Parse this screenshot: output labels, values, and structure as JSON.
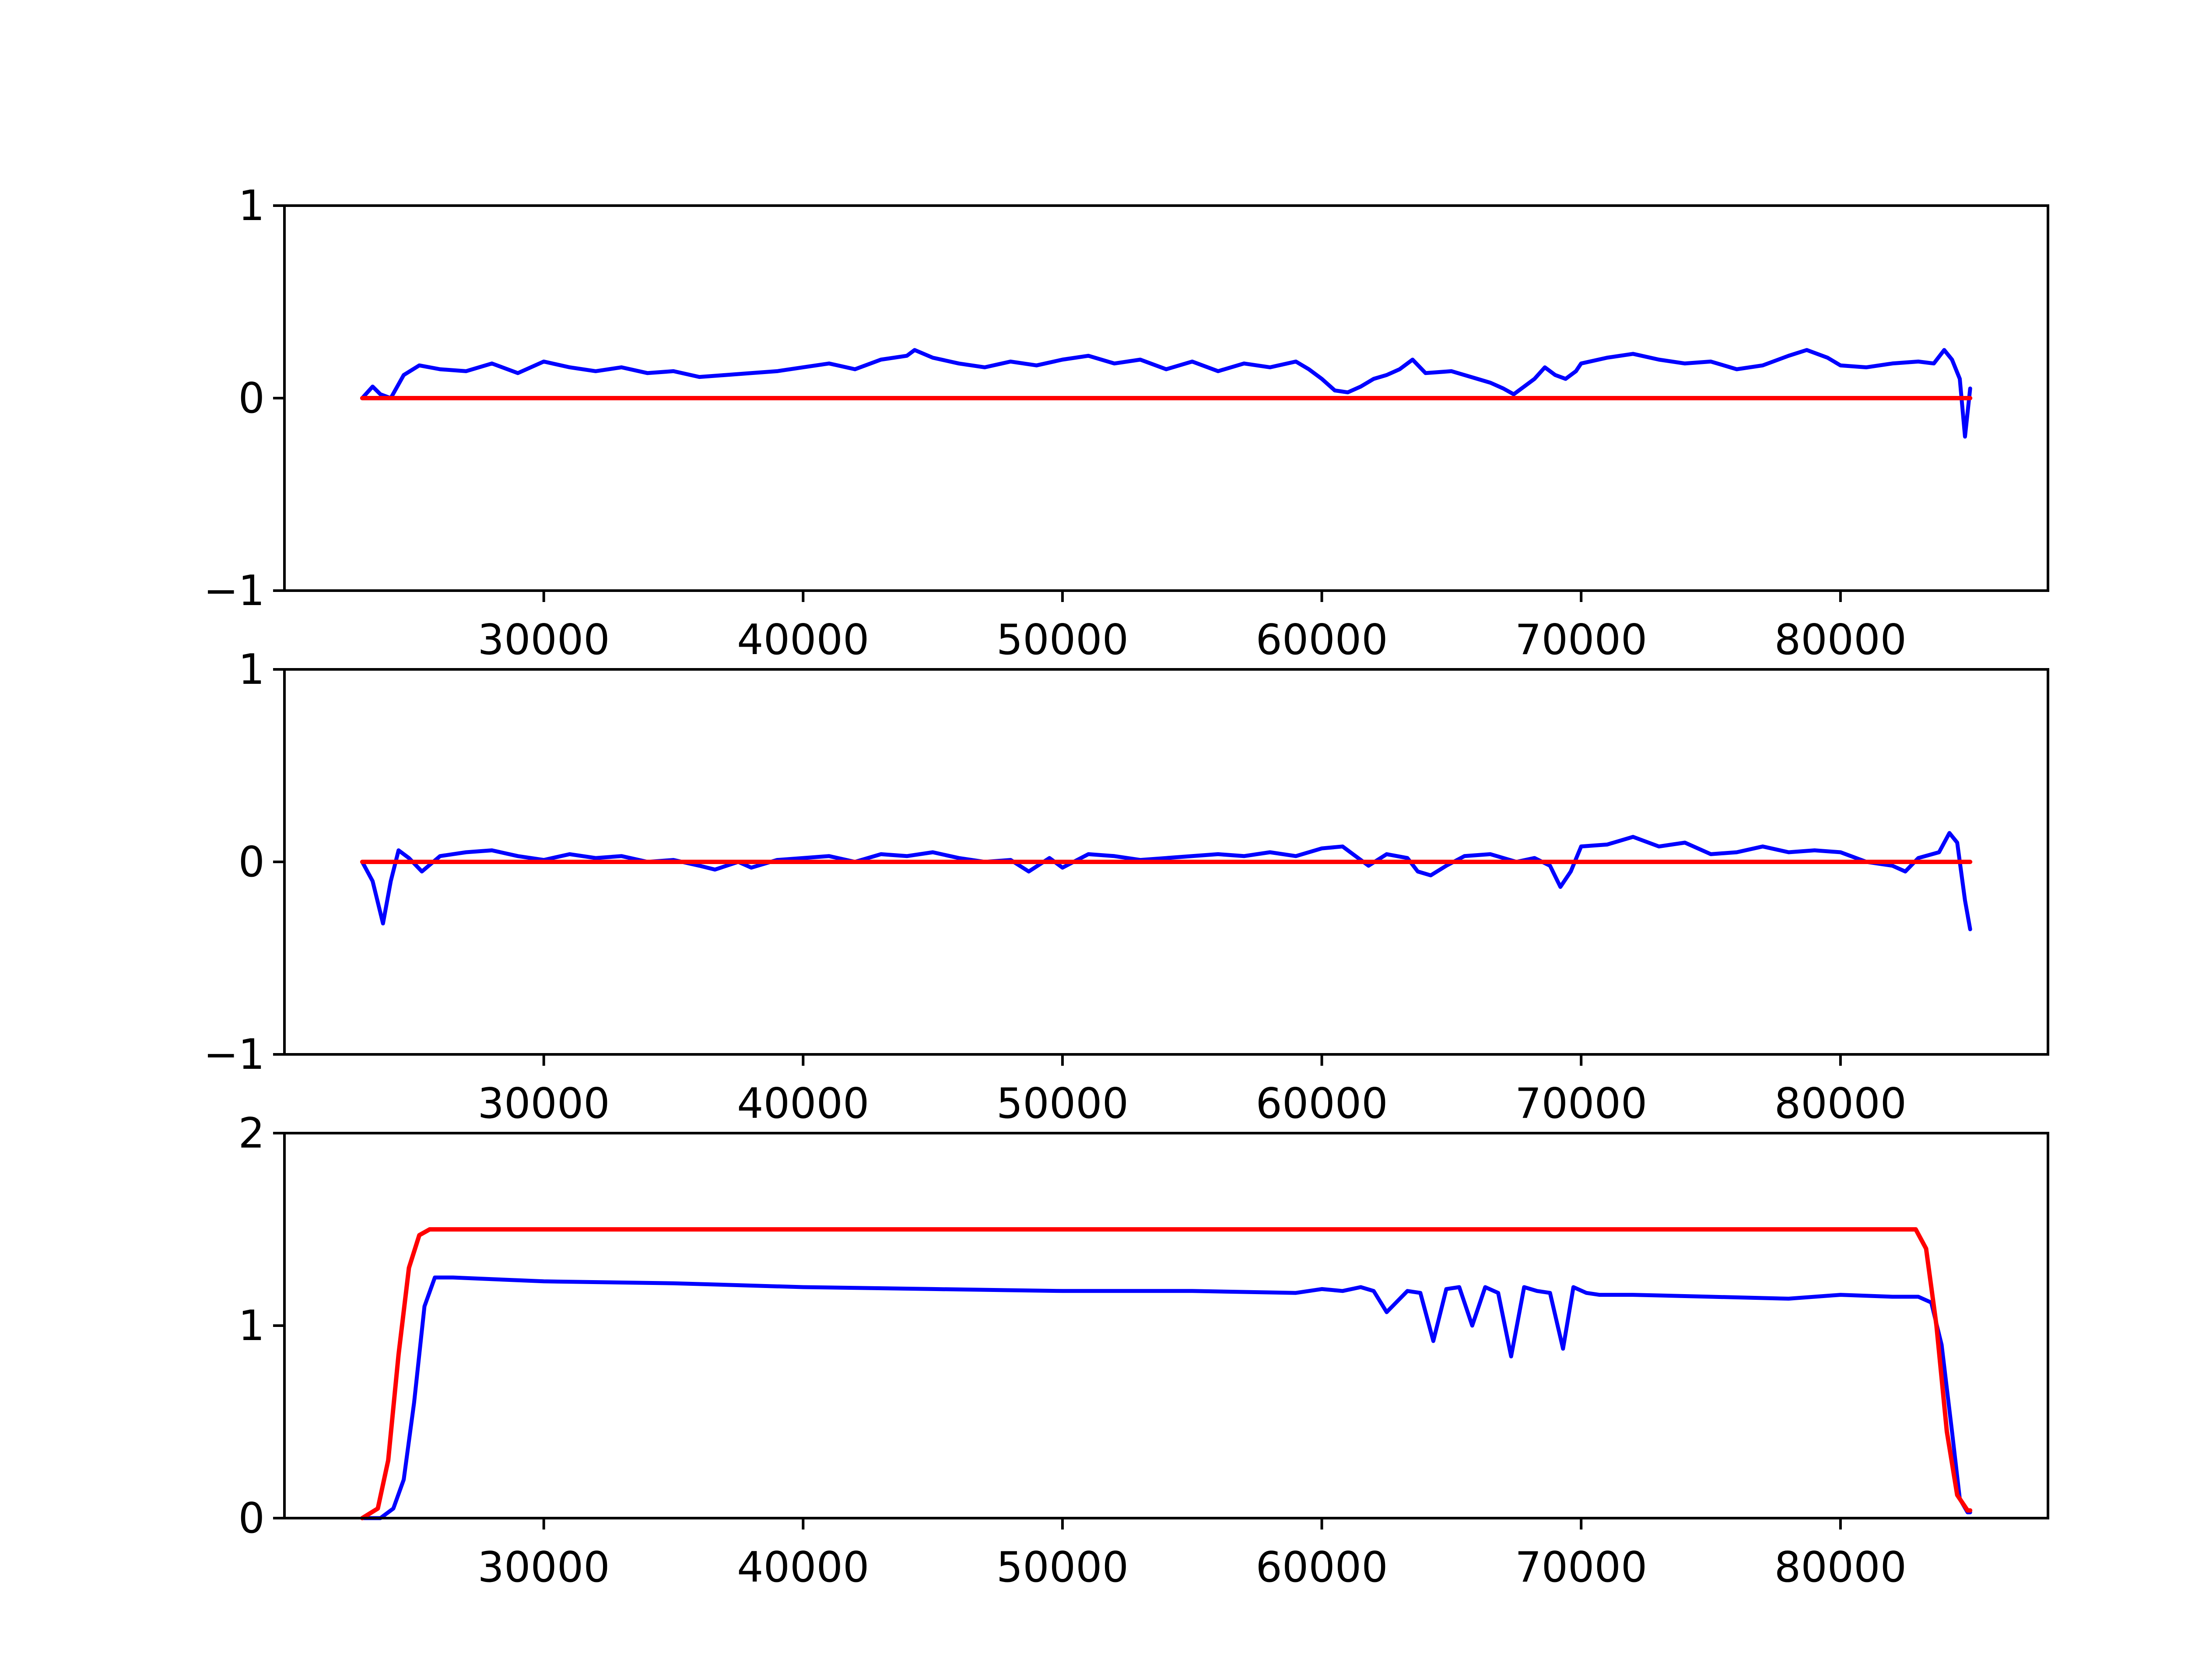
{
  "colors": {
    "measured": "#0000ff",
    "reference": "#ff0000",
    "axes": "#000000",
    "background": "#ffffff"
  },
  "chart_data": [
    {
      "type": "line",
      "title": "",
      "xlabel": "",
      "ylabel": "",
      "xlim": [
        20000,
        88000
      ],
      "ylim": [
        -1,
        1
      ],
      "xticks": [
        30000,
        40000,
        50000,
        60000,
        70000,
        80000
      ],
      "xtick_labels": [
        "30000",
        "40000",
        "50000",
        "60000",
        "70000",
        "80000"
      ],
      "yticks": [
        -1,
        0,
        1
      ],
      "ytick_labels": [
        "−1",
        "0",
        "1"
      ],
      "grid": false,
      "legend": "none",
      "series": [
        {
          "color": "#0000ff",
          "x": [
            23000,
            23400,
            23700,
            24100,
            24600,
            25200,
            26000,
            27000,
            28000,
            29000,
            30000,
            31000,
            32000,
            33000,
            34000,
            35000,
            36000,
            37000,
            38000,
            39000,
            40000,
            41000,
            42000,
            43000,
            44000,
            44300,
            45000,
            46000,
            47000,
            48000,
            49000,
            50000,
            51000,
            52000,
            53000,
            54000,
            55000,
            56000,
            57000,
            58000,
            59000,
            59500,
            60000,
            60500,
            61000,
            61500,
            62000,
            62500,
            63000,
            63500,
            64000,
            65000,
            66000,
            66500,
            67000,
            67400,
            67800,
            68200,
            68600,
            69000,
            69400,
            69800,
            70000,
            71000,
            72000,
            73000,
            74000,
            75000,
            76000,
            77000,
            78000,
            78700,
            79500,
            80000,
            81000,
            82000,
            83000,
            83600,
            84000,
            84300,
            84600,
            84800,
            85000
          ],
          "y": [
            0.0,
            0.06,
            0.02,
            0.0,
            0.12,
            0.17,
            0.15,
            0.14,
            0.18,
            0.13,
            0.19,
            0.16,
            0.14,
            0.16,
            0.13,
            0.14,
            0.11,
            0.12,
            0.13,
            0.14,
            0.16,
            0.18,
            0.15,
            0.2,
            0.22,
            0.25,
            0.21,
            0.18,
            0.16,
            0.19,
            0.17,
            0.2,
            0.22,
            0.18,
            0.2,
            0.15,
            0.19,
            0.14,
            0.18,
            0.16,
            0.19,
            0.15,
            0.1,
            0.04,
            0.03,
            0.06,
            0.1,
            0.12,
            0.15,
            0.2,
            0.13,
            0.14,
            0.1,
            0.08,
            0.05,
            0.02,
            0.06,
            0.1,
            0.16,
            0.12,
            0.1,
            0.14,
            0.18,
            0.21,
            0.23,
            0.2,
            0.18,
            0.19,
            0.15,
            0.17,
            0.22,
            0.25,
            0.21,
            0.17,
            0.16,
            0.18,
            0.19,
            0.18,
            0.25,
            0.2,
            0.1,
            -0.2,
            0.05
          ]
        },
        {
          "color": "#ff0000",
          "x": [
            23000,
            85000
          ],
          "y": [
            0,
            0
          ]
        }
      ]
    },
    {
      "type": "line",
      "title": "",
      "xlabel": "",
      "ylabel": "",
      "xlim": [
        20000,
        88000
      ],
      "ylim": [
        -1,
        1
      ],
      "xticks": [
        30000,
        40000,
        50000,
        60000,
        70000,
        80000
      ],
      "xtick_labels": [
        "30000",
        "40000",
        "50000",
        "60000",
        "70000",
        "80000"
      ],
      "yticks": [
        -1,
        0,
        1
      ],
      "ytick_labels": [
        "−1",
        "0",
        "1"
      ],
      "grid": false,
      "legend": "none",
      "series": [
        {
          "color": "#0000ff",
          "x": [
            23000,
            23400,
            23800,
            24100,
            24400,
            24800,
            25300,
            26000,
            27000,
            28000,
            29000,
            30000,
            31000,
            32000,
            33000,
            34000,
            35000,
            36000,
            36600,
            37500,
            38000,
            39000,
            40000,
            41000,
            42000,
            43000,
            44000,
            45000,
            46000,
            47000,
            48000,
            48700,
            49500,
            50000,
            51000,
            52000,
            53000,
            54000,
            55000,
            56000,
            57000,
            58000,
            59000,
            60000,
            60800,
            61200,
            61800,
            62500,
            63300,
            63700,
            64200,
            64800,
            65500,
            66500,
            67500,
            68200,
            68800,
            69200,
            69600,
            70000,
            71000,
            72000,
            73000,
            74000,
            75000,
            76000,
            77000,
            78000,
            79000,
            80000,
            81000,
            82000,
            82500,
            83000,
            83800,
            84200,
            84500,
            84800,
            85000
          ],
          "y": [
            0.0,
            -0.1,
            -0.32,
            -0.1,
            0.06,
            0.02,
            -0.05,
            0.03,
            0.05,
            0.06,
            0.03,
            0.01,
            0.04,
            0.02,
            0.03,
            0.0,
            0.01,
            -0.02,
            -0.04,
            0.0,
            -0.03,
            0.01,
            0.02,
            0.03,
            0.0,
            0.04,
            0.03,
            0.05,
            0.02,
            0.0,
            0.01,
            -0.05,
            0.02,
            -0.03,
            0.04,
            0.03,
            0.01,
            0.02,
            0.03,
            0.04,
            0.03,
            0.05,
            0.03,
            0.07,
            0.08,
            0.04,
            -0.02,
            0.04,
            0.02,
            -0.05,
            -0.07,
            -0.02,
            0.03,
            0.04,
            0.0,
            0.02,
            -0.02,
            -0.13,
            -0.05,
            0.08,
            0.09,
            0.13,
            0.08,
            0.1,
            0.04,
            0.05,
            0.08,
            0.05,
            0.06,
            0.05,
            0.0,
            -0.02,
            -0.05,
            0.02,
            0.05,
            0.15,
            0.1,
            -0.2,
            -0.35
          ]
        },
        {
          "color": "#ff0000",
          "x": [
            23000,
            85000
          ],
          "y": [
            0,
            0
          ]
        }
      ]
    },
    {
      "type": "line",
      "title": "",
      "xlabel": "",
      "ylabel": "",
      "xlim": [
        20000,
        88000
      ],
      "ylim": [
        0,
        2
      ],
      "xticks": [
        30000,
        40000,
        50000,
        60000,
        70000,
        80000
      ],
      "xtick_labels": [
        "30000",
        "40000",
        "50000",
        "60000",
        "70000",
        "80000"
      ],
      "yticks": [
        0,
        1,
        2
      ],
      "ytick_labels": [
        "0",
        "1",
        "2"
      ],
      "grid": false,
      "legend": "none",
      "series": [
        {
          "color": "#0000ff",
          "x": [
            23000,
            23700,
            24200,
            24600,
            25000,
            25400,
            25800,
            26500,
            30000,
            35000,
            40000,
            45000,
            50000,
            55000,
            59000,
            60000,
            60800,
            61500,
            62000,
            62500,
            63300,
            63800,
            64300,
            64800,
            65300,
            65800,
            66300,
            66800,
            67300,
            67800,
            68300,
            68800,
            69300,
            69700,
            70200,
            70700,
            72000,
            75000,
            78000,
            80000,
            82000,
            83000,
            83500,
            83900,
            84300,
            84600,
            84900,
            85000
          ],
          "y": [
            0.0,
            0.0,
            0.05,
            0.2,
            0.6,
            1.1,
            1.25,
            1.25,
            1.23,
            1.22,
            1.2,
            1.19,
            1.18,
            1.18,
            1.17,
            1.19,
            1.18,
            1.2,
            1.18,
            1.07,
            1.18,
            1.17,
            0.92,
            1.19,
            1.2,
            1.0,
            1.2,
            1.17,
            0.84,
            1.2,
            1.18,
            1.17,
            0.88,
            1.2,
            1.17,
            1.16,
            1.16,
            1.15,
            1.14,
            1.16,
            1.15,
            1.15,
            1.12,
            0.9,
            0.45,
            0.1,
            0.03,
            0.03
          ]
        },
        {
          "color": "#ff0000",
          "x": [
            23000,
            23600,
            24000,
            24400,
            24800,
            25200,
            25600,
            26000,
            82500,
            82900,
            83300,
            83700,
            84100,
            84500,
            84900,
            85000
          ],
          "y": [
            0.0,
            0.05,
            0.3,
            0.85,
            1.3,
            1.47,
            1.5,
            1.5,
            1.5,
            1.5,
            1.4,
            1.0,
            0.45,
            0.12,
            0.04,
            0.04
          ]
        }
      ]
    }
  ]
}
